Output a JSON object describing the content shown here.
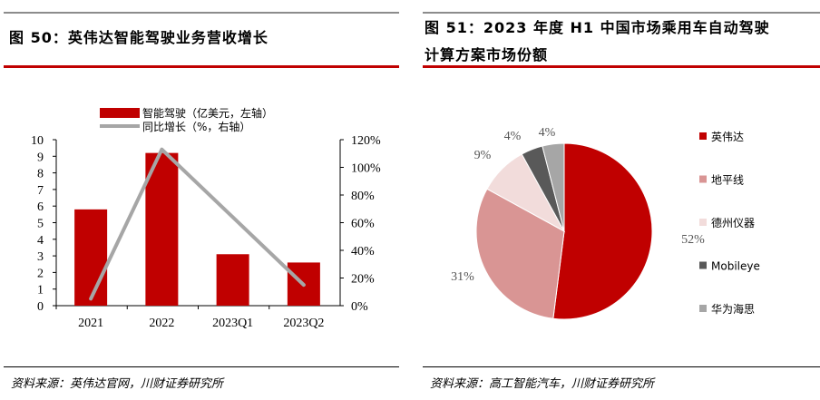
{
  "left": {
    "title": "图 50：英伟达智能驾驶业务营收增长",
    "source": "资料来源：英伟达官网，川财证券研究所",
    "colors": {
      "bar": "#c00000",
      "line": "#a6a6a6"
    }
  },
  "right": {
    "title_line1": "图 51：2023 年度 H1 中国市场乘用车自动驾驶",
    "title_line2": "计算方案市场份额",
    "source": "资料来源：高工智能汽车，川财证券研究所"
  },
  "chart_data": [
    {
      "type": "bar",
      "categories": [
        "2021",
        "2022",
        "2023Q1",
        "2023Q2"
      ],
      "series": [
        {
          "name": "智能驾驶（亿美元，左轴）",
          "kind": "bar",
          "axis": "left",
          "values": [
            5.8,
            9.2,
            3.1,
            2.6
          ]
        },
        {
          "name": "同比增长（%，右轴）",
          "kind": "line",
          "axis": "right",
          "values": [
            5,
            113,
            null,
            15
          ]
        }
      ],
      "ylim_left": [
        0,
        10
      ],
      "yticks_left": [
        "0",
        "1",
        "2",
        "3",
        "4",
        "5",
        "6",
        "7",
        "8",
        "9",
        "10"
      ],
      "ylim_right": [
        0,
        120
      ],
      "yticks_right": [
        "0%",
        "20%",
        "40%",
        "60%",
        "80%",
        "100%",
        "120%"
      ],
      "legend_position": "top"
    },
    {
      "type": "pie",
      "labels": [
        "英伟达",
        "地平线",
        "德州仪器",
        "Mobileye",
        "华为海思"
      ],
      "values": [
        52,
        31,
        9,
        4,
        4
      ],
      "value_labels": [
        "52%",
        "31%",
        "9%",
        "4%",
        "4%"
      ],
      "colors": [
        "#c00000",
        "#d99594",
        "#f2dcdb",
        "#595959",
        "#a6a6a6"
      ],
      "legend_position": "right"
    }
  ]
}
